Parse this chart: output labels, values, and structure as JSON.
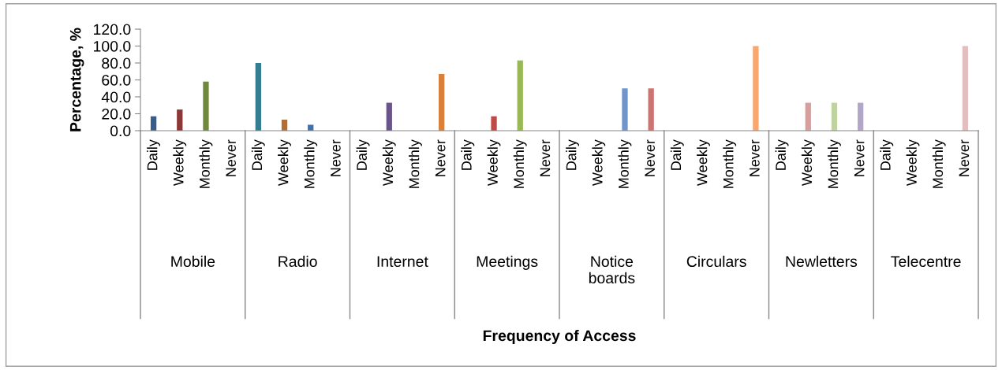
{
  "chart_data": {
    "type": "bar",
    "categories": [
      "Daily",
      "Weekly",
      "Monthly",
      "Never",
      "Daily",
      "Weekly",
      "Monthly",
      "Never",
      "Daily",
      "Weekly",
      "Monthly",
      "Never",
      "Daily",
      "Weekly",
      "Monthly",
      "Never",
      "Daily",
      "Weekly",
      "Monthly",
      "Never",
      "Daily",
      "Weekly",
      "Monthly",
      "Never",
      "Daily",
      "Weekly",
      "Monthly",
      "Never",
      "Daily",
      "Weekly",
      "Monthly",
      "Never"
    ],
    "values": [
      17,
      25,
      58,
      0,
      80,
      13,
      7,
      0,
      0,
      33,
      0,
      67,
      0,
      17,
      83,
      0,
      0,
      0,
      50,
      50,
      0,
      0,
      0,
      100,
      0,
      33,
      33,
      33,
      0,
      0,
      0,
      100
    ],
    "colors": [
      "#385d8a",
      "#8c3836",
      "#71893f",
      "#5c4776",
      "#357d91",
      "#b66d31",
      "#4470a8",
      "#8c3836",
      "#4f81bd",
      "#6b548a",
      "#71893f",
      "#d9803a",
      "#4f81bd",
      "#be4b48",
      "#98b954",
      "#8064a2",
      "#4bacc6",
      "#f79646",
      "#7195cb",
      "#cc7472",
      "#4f81bd",
      "#c0504d",
      "#9bbb59",
      "#f9a76e",
      "#95b3d7",
      "#d79e9d",
      "#bfd3a1",
      "#b2a7c9",
      "#93cddd",
      "#fac090",
      "#a7c0de",
      "#e3bebe"
    ],
    "annotations": [
      "Mobile",
      "Radio",
      "Internet",
      "Meetings",
      "Notice boards",
      "Circulars",
      "Newletters",
      "Telecentre",
      "Frequency of Access"
    ],
    "ylabel": "Percentage, %",
    "ylim": [
      0,
      120
    ],
    "yticks": [
      {
        "value": 0,
        "label": "0.0"
      },
      {
        "value": 20,
        "label": "20.0"
      },
      {
        "value": 40,
        "label": "40.0"
      },
      {
        "value": 60,
        "label": "60.0"
      },
      {
        "value": 80,
        "label": "80.0"
      },
      {
        "value": 100,
        "label": "100.0"
      },
      {
        "value": 120,
        "label": "120.0"
      }
    ]
  }
}
